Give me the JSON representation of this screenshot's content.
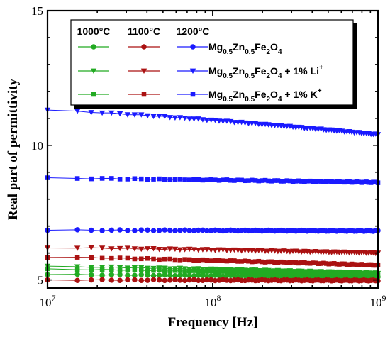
{
  "chart_data": {
    "type": "line",
    "title": "",
    "xlabel": "Frequency [Hz]",
    "ylabel": "Real part of permittivity",
    "x_scale": "log",
    "xlim": [
      10000000,
      1000000000
    ],
    "ylim": [
      4.7,
      15
    ],
    "x_ticks": [
      {
        "value": 10000000,
        "base": "10",
        "exp": "7"
      },
      {
        "value": 100000000,
        "base": "10",
        "exp": "8"
      },
      {
        "value": 1000000000,
        "base": "10",
        "exp": "9"
      }
    ],
    "y_ticks": [
      {
        "value": 5,
        "label": "5"
      },
      {
        "value": 10,
        "label": "10"
      },
      {
        "value": 15,
        "label": "15"
      }
    ],
    "grid": false,
    "legend_position": "top",
    "legend": {
      "column_headers": [
        "1000°C",
        "1100°C",
        "1200°C"
      ],
      "rows": [
        {
          "marker": "circle",
          "parts": [
            [
              "Mg",
              ""
            ],
            [
              "0.5",
              "sub"
            ],
            [
              "Zn",
              ""
            ],
            [
              "0.5",
              "sub"
            ],
            [
              "Fe",
              ""
            ],
            [
              "2",
              "sub"
            ],
            [
              "O",
              ""
            ],
            [
              "4",
              "sub"
            ]
          ]
        },
        {
          "marker": "triangle-down",
          "parts": [
            [
              "Mg",
              ""
            ],
            [
              "0.5",
              "sub"
            ],
            [
              "Zn",
              ""
            ],
            [
              "0.5",
              "sub"
            ],
            [
              "Fe",
              ""
            ],
            [
              "2",
              "sub"
            ],
            [
              "O",
              ""
            ],
            [
              "4",
              "sub"
            ],
            [
              " + 1% Li",
              ""
            ],
            [
              "+",
              "sup"
            ]
          ]
        },
        {
          "marker": "square",
          "parts": [
            [
              "Mg",
              ""
            ],
            [
              "0.5",
              "sub"
            ],
            [
              "Zn",
              ""
            ],
            [
              "0.5",
              "sub"
            ],
            [
              "Fe",
              ""
            ],
            [
              "2",
              "sub"
            ],
            [
              "O",
              ""
            ],
            [
              "4",
              "sub"
            ],
            [
              " + 1% K",
              ""
            ],
            [
              "+",
              "sup"
            ]
          ]
        }
      ]
    },
    "series": [
      {
        "temp": "1000°C",
        "marker": "circle",
        "color": "#22aa22",
        "log_start": 7.0,
        "y_start": 5.2,
        "y_end": 5.1
      },
      {
        "temp": "1000°C",
        "marker": "triangle-down",
        "color": "#22aa22",
        "log_start": 7.0,
        "y_start": 5.5,
        "y_end": 5.25
      },
      {
        "temp": "1000°C",
        "marker": "square",
        "color": "#22aa22",
        "log_start": 7.0,
        "y_start": 5.4,
        "y_end": 5.2
      },
      {
        "temp": "1100°C",
        "marker": "circle",
        "color": "#aa1111",
        "log_start": 7.0,
        "y_start": 5.0,
        "y_end": 4.98
      },
      {
        "temp": "1100°C",
        "marker": "triangle-down",
        "color": "#aa1111",
        "log_start": 7.0,
        "y_start": 6.2,
        "y_end": 6.0
      },
      {
        "temp": "1100°C",
        "marker": "square",
        "color": "#aa1111",
        "log_start": 7.0,
        "y_start": 5.85,
        "y_end": 5.55
      },
      {
        "temp": "1200°C",
        "marker": "circle",
        "color": "#1a1aff",
        "log_start": 7.0,
        "y_start": 6.85,
        "y_end": 6.82
      },
      {
        "temp": "1200°C",
        "marker": "triangle-down",
        "color": "#1a1aff",
        "log_start": 7.0,
        "y_start": 11.3,
        "y_end": 10.4
      },
      {
        "temp": "1200°C",
        "marker": "square",
        "color": "#1a1aff",
        "log_start": 7.0,
        "y_start": 8.78,
        "y_end": 8.62
      }
    ],
    "legend_colors": [
      "#22aa22",
      "#aa1111",
      "#1a1aff"
    ]
  }
}
